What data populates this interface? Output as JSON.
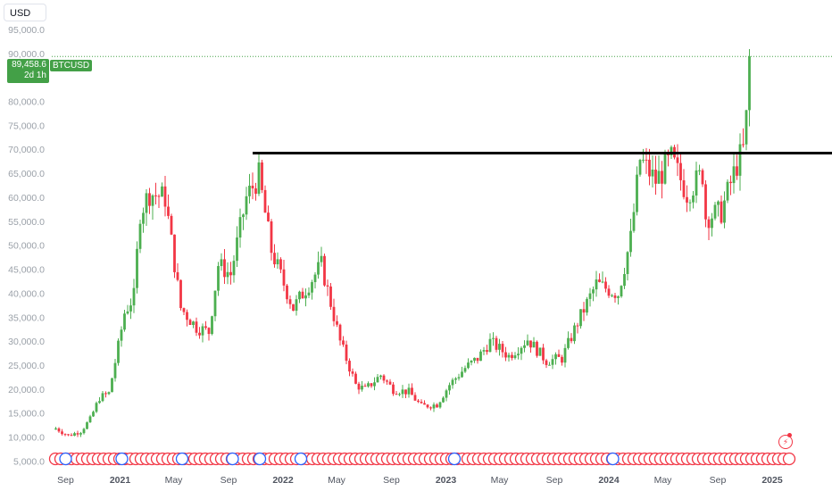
{
  "currency": "USD",
  "symbol": "BTCUSD",
  "last_price": "89,458.6",
  "countdown": "2d 1h",
  "colors": {
    "up": "#4caf50",
    "down": "#f23645",
    "level_line": "#000000",
    "grid_text": "#9aa0a8",
    "price_line": "#43a047"
  },
  "chart_data": {
    "type": "candlestick",
    "interval": "weekly",
    "ylim": [
      3500,
      97500
    ],
    "y_ticks": [
      "5,000.0",
      "10,000.0",
      "15,000.0",
      "20,000.0",
      "25,000.0",
      "30,000.0",
      "35,000.0",
      "40,000.0",
      "45,000.0",
      "50,000.0",
      "55,000.0",
      "60,000.0",
      "65,000.0",
      "70,000.0",
      "75,000.0",
      "80,000.0",
      "85,000.0",
      "90,000.0",
      "95,000.0"
    ],
    "y_tick_values": [
      5000,
      10000,
      15000,
      20000,
      25000,
      30000,
      35000,
      40000,
      45000,
      50000,
      55000,
      60000,
      65000,
      70000,
      75000,
      80000,
      85000,
      90000,
      95000
    ],
    "x_ticks": [
      "Sep",
      "2021",
      "May",
      "Sep",
      "2022",
      "May",
      "Sep",
      "2023",
      "May",
      "Sep",
      "2024",
      "May",
      "Sep",
      "2025"
    ],
    "x_tick_dates": [
      "2020-09-01",
      "2021-01-01",
      "2021-05-01",
      "2021-09-01",
      "2022-01-01",
      "2022-05-01",
      "2022-09-01",
      "2023-01-01",
      "2023-05-01",
      "2023-09-01",
      "2024-01-01",
      "2024-05-01",
      "2024-09-01",
      "2025-01-01"
    ],
    "x_range": [
      "2020-08-01",
      "2025-01-31"
    ],
    "horizontal_level": {
      "value": 69300,
      "from_date": "2021-10-25"
    },
    "last_price_value": 89458.6,
    "candle_keypoints": [
      [
        "2020-08-10",
        11900
      ],
      [
        "2020-09-07",
        10400
      ],
      [
        "2020-10-05",
        11300
      ],
      [
        "2020-10-26",
        13800
      ],
      [
        "2020-11-16",
        18300
      ],
      [
        "2020-12-07",
        19200
      ],
      [
        "2020-12-28",
        29000
      ],
      [
        "2021-01-11",
        36000
      ],
      [
        "2021-02-01",
        39500
      ],
      [
        "2021-02-15",
        57000
      ],
      [
        "2021-03-08",
        61000
      ],
      [
        "2021-04-12",
        60000
      ],
      [
        "2021-05-17",
        37000
      ],
      [
        "2021-06-21",
        33000
      ],
      [
        "2021-07-19",
        32000
      ],
      [
        "2021-08-09",
        46000
      ],
      [
        "2021-09-06",
        44000
      ],
      [
        "2021-10-11",
        60000
      ],
      [
        "2021-11-08",
        64500
      ],
      [
        "2021-12-06",
        49000
      ],
      [
        "2022-01-03",
        42000
      ],
      [
        "2022-01-24",
        37000
      ],
      [
        "2022-03-28",
        46000
      ],
      [
        "2022-05-09",
        30000
      ],
      [
        "2022-06-13",
        21000
      ],
      [
        "2022-07-04",
        20000
      ],
      [
        "2022-08-08",
        23000
      ],
      [
        "2022-09-05",
        20000
      ],
      [
        "2022-10-10",
        19500
      ],
      [
        "2022-11-07",
        16500
      ],
      [
        "2022-12-12",
        16900
      ],
      [
        "2023-01-09",
        21000
      ],
      [
        "2023-02-13",
        24500
      ],
      [
        "2023-03-13",
        26500
      ],
      [
        "2023-04-10",
        30000
      ],
      [
        "2023-05-22",
        27000
      ],
      [
        "2023-07-03",
        30500
      ],
      [
        "2023-08-14",
        26000
      ],
      [
        "2023-09-18",
        26500
      ],
      [
        "2023-10-23",
        34000
      ],
      [
        "2023-12-04",
        42000
      ],
      [
        "2024-01-22",
        40000
      ],
      [
        "2024-02-19",
        51500
      ],
      [
        "2024-03-11",
        68000
      ],
      [
        "2024-04-15",
        63500
      ],
      [
        "2024-05-20",
        68000
      ],
      [
        "2024-06-24",
        61000
      ],
      [
        "2024-07-29",
        65000
      ],
      [
        "2024-08-05",
        56000
      ],
      [
        "2024-09-09",
        57000
      ],
      [
        "2024-10-14",
        67000
      ],
      [
        "2024-10-28",
        70000
      ],
      [
        "2024-11-04",
        76500
      ],
      [
        "2024-11-11",
        89458.6
      ]
    ]
  }
}
